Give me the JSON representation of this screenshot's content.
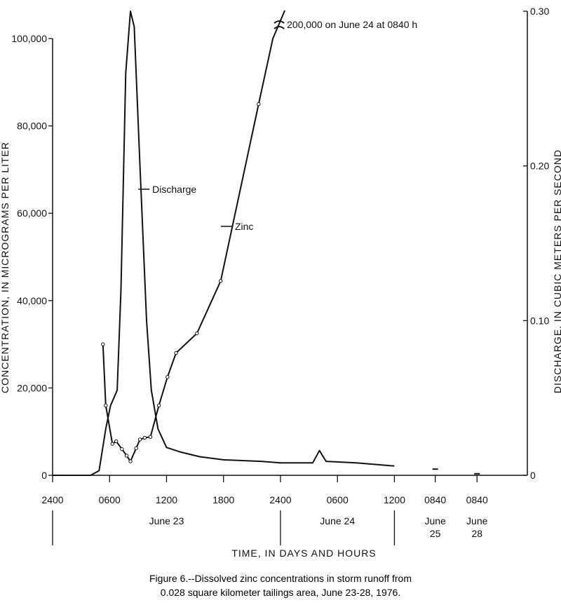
{
  "chart_data": {
    "type": "line",
    "xlabel": "TIME, IN DAYS AND HOURS",
    "ylabel_left": "CONCENTRATION, IN MICROGRAMS PER LITER",
    "ylabel_right": "DISCHARGE, IN CUBIC METERS PER SECOND",
    "ylim_left": [
      0,
      100000
    ],
    "ylim_right": [
      0,
      0.3
    ],
    "left_ticks": [
      {
        "value": 0,
        "label": "0"
      },
      {
        "value": 20000,
        "label": "20,000"
      },
      {
        "value": 40000,
        "label": "40,000"
      },
      {
        "value": 60000,
        "label": "60,000"
      },
      {
        "value": 80000,
        "label": "80,000"
      },
      {
        "value": 100000,
        "label": "100,000"
      }
    ],
    "right_ticks": [
      {
        "value": 0,
        "label": "0"
      },
      {
        "value": 0.1,
        "label": "0.10"
      },
      {
        "value": 0.2,
        "label": "0.20"
      },
      {
        "value": 0.3,
        "label": "0.30"
      }
    ],
    "x_ticks": [
      {
        "hours": 0,
        "label": "2400"
      },
      {
        "hours": 6,
        "label": "0600"
      },
      {
        "hours": 12,
        "label": "1200"
      },
      {
        "hours": 18,
        "label": "1800"
      },
      {
        "hours": 24,
        "label": "2400"
      },
      {
        "hours": 30,
        "label": "0600"
      },
      {
        "hours": 36,
        "label": "1200"
      },
      {
        "hours": 40.3,
        "label": "0840"
      },
      {
        "hours": 44.7,
        "label": "0840"
      }
    ],
    "day_labels": [
      {
        "hours": 12,
        "line1": "June 23",
        "line2": ""
      },
      {
        "hours": 30,
        "line1": "June 24",
        "line2": ""
      },
      {
        "hours": 40.3,
        "line1": "June",
        "line2": "25"
      },
      {
        "hours": 44.7,
        "line1": "June",
        "line2": "28"
      }
    ],
    "day_separators": [
      0,
      24,
      36
    ],
    "series": [
      {
        "name": "Zinc",
        "label_pos": {
          "hours": 19.2,
          "value": 57000
        },
        "points": [
          {
            "hours": 5.3,
            "value": 30000
          },
          {
            "hours": 5.6,
            "value": 16000
          },
          {
            "hours": 6.3,
            "value": 7200
          },
          {
            "hours": 6.7,
            "value": 7800
          },
          {
            "hours": 7.3,
            "value": 6000
          },
          {
            "hours": 7.8,
            "value": 4500
          },
          {
            "hours": 8.2,
            "value": 3200
          },
          {
            "hours": 8.8,
            "value": 6200
          },
          {
            "hours": 9.2,
            "value": 8200
          },
          {
            "hours": 9.7,
            "value": 8600
          },
          {
            "hours": 10.3,
            "value": 8800
          },
          {
            "hours": 11.2,
            "value": 16000
          },
          {
            "hours": 12.1,
            "value": 22500
          },
          {
            "hours": 13.0,
            "value": 28000
          },
          {
            "hours": 15.2,
            "value": 32500
          },
          {
            "hours": 17.7,
            "value": 44500
          },
          {
            "hours": 21.7,
            "value": 85000
          },
          {
            "hours": 23.2,
            "value": 100000
          }
        ],
        "off_scale_note": "200,000 on June 24 at 0840 h"
      },
      {
        "name": "Discharge",
        "label_pos": {
          "hours": 10.5,
          "value": 65500
        },
        "points": [
          {
            "hours": 0,
            "value": 0
          },
          {
            "hours": 4.0,
            "value": 0
          },
          {
            "hours": 4.9,
            "value": 0.003
          },
          {
            "hours": 5.6,
            "value": 0.03
          },
          {
            "hours": 6.1,
            "value": 0.045
          },
          {
            "hours": 6.8,
            "value": 0.055
          },
          {
            "hours": 7.2,
            "value": 0.12
          },
          {
            "hours": 7.7,
            "value": 0.26
          },
          {
            "hours": 8.2,
            "value": 0.3
          },
          {
            "hours": 8.6,
            "value": 0.29
          },
          {
            "hours": 9.2,
            "value": 0.2
          },
          {
            "hours": 9.9,
            "value": 0.1
          },
          {
            "hours": 10.4,
            "value": 0.055
          },
          {
            "hours": 11.1,
            "value": 0.03
          },
          {
            "hours": 12.0,
            "value": 0.018
          },
          {
            "hours": 13.5,
            "value": 0.015
          },
          {
            "hours": 15.5,
            "value": 0.012
          },
          {
            "hours": 18.0,
            "value": 0.01
          },
          {
            "hours": 22.0,
            "value": 0.009
          },
          {
            "hours": 24.0,
            "value": 0.008
          },
          {
            "hours": 27.4,
            "value": 0.008
          },
          {
            "hours": 28.1,
            "value": 0.016
          },
          {
            "hours": 28.8,
            "value": 0.009
          },
          {
            "hours": 32.0,
            "value": 0.008
          },
          {
            "hours": 36.0,
            "value": 0.006
          }
        ],
        "isolated_points": [
          {
            "hours": 40.3,
            "value": 0.004
          },
          {
            "hours": 44.7,
            "value": 0.001
          }
        ]
      }
    ]
  },
  "caption": {
    "line1": "Figure 6.--Dissolved zinc concentrations in storm runoff from",
    "line2": "0.028 square kilometer tailings area, June 23-28, 1976."
  }
}
